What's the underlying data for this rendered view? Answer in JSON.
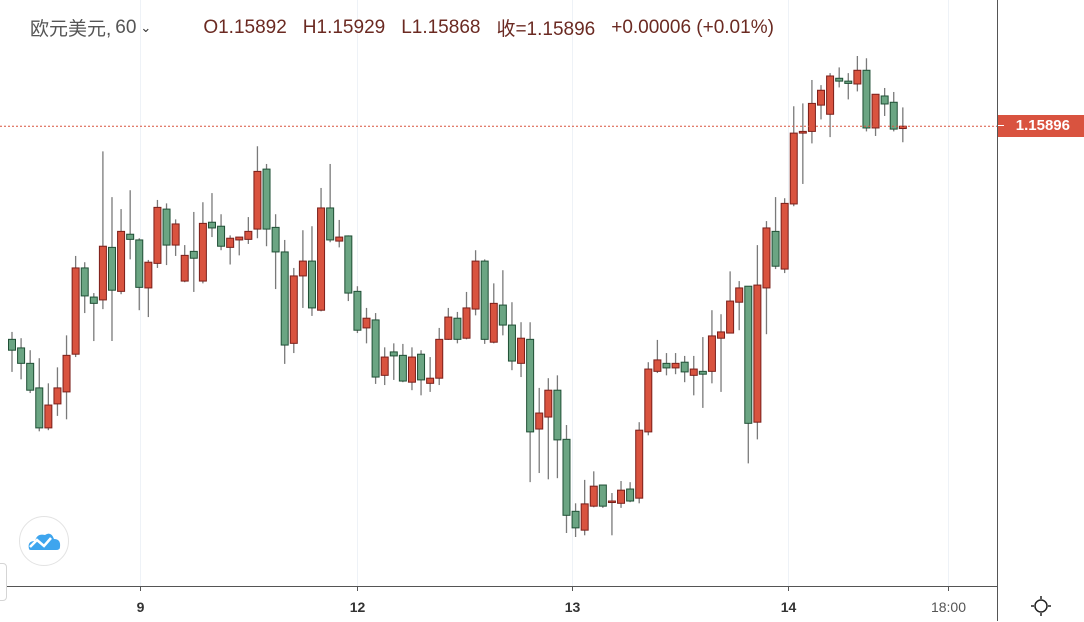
{
  "header": {
    "symbol": "欧元美元,",
    "interval": "60",
    "open": "O1.15892",
    "high": "H1.15929",
    "low": "L1.15868",
    "close": "收=1.15896",
    "change": "+0.00006 (+0.01%)"
  },
  "price_tag": "1.15896",
  "icons": {
    "logo": "tradingview-cloud-logo",
    "settings": "settings-sun-icon",
    "interval_dropdown": "chevron-down-icon"
  },
  "colors": {
    "up": "#d9533f",
    "up_border": "#7a1f1a",
    "down": "#6ba583",
    "down_border": "#1f4f35",
    "wick": "#7a7a7a",
    "last_price": "#d9533f",
    "grid": "#eef2f7"
  },
  "chart_data": {
    "type": "candlestick",
    "title": "欧元美元, 60",
    "xlabel": "",
    "ylabel": "",
    "ylim": [
      1.15093,
      1.16117
    ],
    "grid": true,
    "last_price": 1.15896,
    "x_ticks": [
      {
        "index": 14.1,
        "label": "9",
        "kind": "date"
      },
      {
        "index": 37.9,
        "label": "12",
        "kind": "date"
      },
      {
        "index": 61.6,
        "label": "13",
        "kind": "date"
      },
      {
        "index": 85.4,
        "label": "14",
        "kind": "date"
      },
      {
        "index": 103.0,
        "label": "18:00",
        "kind": "time"
      }
    ],
    "ohlc": [
      [
        1.15523,
        1.15536,
        1.15466,
        1.15504
      ],
      [
        1.15508,
        1.15525,
        1.15453,
        1.15481
      ],
      [
        1.15481,
        1.15504,
        1.15429,
        1.15434
      ],
      [
        1.15438,
        1.1549,
        1.15362,
        1.15368
      ],
      [
        1.15368,
        1.15446,
        1.15364,
        1.15408
      ],
      [
        1.1541,
        1.15474,
        1.15389,
        1.15438
      ],
      [
        1.15431,
        1.1553,
        1.15383,
        1.15495
      ],
      [
        1.15497,
        1.15669,
        1.15492,
        1.15648
      ],
      [
        1.15648,
        1.15658,
        1.15569,
        1.15599
      ],
      [
        1.15597,
        1.15604,
        1.1552,
        1.15586
      ],
      [
        1.15592,
        1.15852,
        1.15576,
        1.15686
      ],
      [
        1.15684,
        1.15772,
        1.1552,
        1.15609
      ],
      [
        1.15607,
        1.15751,
        1.15602,
        1.15712
      ],
      [
        1.15707,
        1.15784,
        1.15663,
        1.15698
      ],
      [
        1.15697,
        1.157,
        1.15574,
        1.15614
      ],
      [
        1.15613,
        1.15662,
        1.15562,
        1.15658
      ],
      [
        1.15656,
        1.15767,
        1.15648,
        1.15754
      ],
      [
        1.15751,
        1.15761,
        1.15653,
        1.15688
      ],
      [
        1.15688,
        1.15733,
        1.15669,
        1.15725
      ],
      [
        1.15625,
        1.15688,
        1.15623,
        1.1567
      ],
      [
        1.15677,
        1.15746,
        1.15606,
        1.15665
      ],
      [
        1.15625,
        1.15763,
        1.15621,
        1.15726
      ],
      [
        1.15728,
        1.15779,
        1.15702,
        1.15718
      ],
      [
        1.15721,
        1.15742,
        1.15679,
        1.15686
      ],
      [
        1.15684,
        1.15705,
        1.15654,
        1.157
      ],
      [
        1.15697,
        1.15702,
        1.1567,
        1.15702
      ],
      [
        1.15698,
        1.15737,
        1.1569,
        1.15712
      ],
      [
        1.15716,
        1.15861,
        1.157,
        1.15817
      ],
      [
        1.15821,
        1.1583,
        1.15686,
        1.15716
      ],
      [
        1.15719,
        1.15742,
        1.15611,
        1.15676
      ],
      [
        1.15676,
        1.15697,
        1.1548,
        1.15513
      ],
      [
        1.15516,
        1.15648,
        1.15499,
        1.15634
      ],
      [
        1.15634,
        1.15714,
        1.15578,
        1.1566
      ],
      [
        1.1566,
        1.15721,
        1.15564,
        1.15578
      ],
      [
        1.15574,
        1.15788,
        1.15572,
        1.15753
      ],
      [
        1.15753,
        1.1583,
        1.15693,
        1.15697
      ],
      [
        1.15695,
        1.15732,
        1.15684,
        1.15702
      ],
      [
        1.15704,
        1.15705,
        1.1559,
        1.15604
      ],
      [
        1.15607,
        1.15616,
        1.15534,
        1.15539
      ],
      [
        1.15543,
        1.15578,
        1.15516,
        1.1556
      ],
      [
        1.15557,
        1.15569,
        1.15445,
        1.15457
      ],
      [
        1.1546,
        1.15509,
        1.15443,
        1.15492
      ],
      [
        1.15501,
        1.15516,
        1.15452,
        1.15494
      ],
      [
        1.15495,
        1.15515,
        1.15448,
        1.1545
      ],
      [
        1.15448,
        1.15509,
        1.15434,
        1.15492
      ],
      [
        1.15497,
        1.15504,
        1.15425,
        1.15452
      ],
      [
        1.15446,
        1.15492,
        1.15431,
        1.15455
      ],
      [
        1.15455,
        1.15543,
        1.15443,
        1.15523
      ],
      [
        1.15523,
        1.15578,
        1.15522,
        1.15562
      ],
      [
        1.1556,
        1.15571,
        1.15516,
        1.15523
      ],
      [
        1.15525,
        1.15606,
        1.15523,
        1.15578
      ],
      [
        1.15576,
        1.15679,
        1.15565,
        1.1566
      ],
      [
        1.1566,
        1.15663,
        1.15515,
        1.15523
      ],
      [
        1.15518,
        1.15621,
        1.15516,
        1.15586
      ],
      [
        1.15583,
        1.15644,
        1.1553,
        1.15548
      ],
      [
        1.15548,
        1.15588,
        1.15469,
        1.15485
      ],
      [
        1.15481,
        1.15553,
        1.15457,
        1.15525
      ],
      [
        1.15523,
        1.15553,
        1.15273,
        1.15361
      ],
      [
        1.15366,
        1.15438,
        1.15289,
        1.15394
      ],
      [
        1.15387,
        1.15455,
        1.15278,
        1.15434
      ],
      [
        1.15434,
        1.1546,
        1.1528,
        1.15347
      ],
      [
        1.15348,
        1.15373,
        1.15184,
        1.15215
      ],
      [
        1.15222,
        1.15236,
        1.15177,
        1.15193
      ],
      [
        1.15189,
        1.15277,
        1.1518,
        1.15235
      ],
      [
        1.15231,
        1.15292,
        1.15229,
        1.15266
      ],
      [
        1.15268,
        1.15268,
        1.15228,
        1.15231
      ],
      [
        1.15238,
        1.15254,
        1.1518,
        1.1524
      ],
      [
        1.15236,
        1.15275,
        1.15228,
        1.15259
      ],
      [
        1.15261,
        1.15273,
        1.15238,
        1.1524
      ],
      [
        1.15245,
        1.15378,
        1.15236,
        1.15364
      ],
      [
        1.15361,
        1.15483,
        1.15355,
        1.15471
      ],
      [
        1.15467,
        1.15522,
        1.15464,
        1.15487
      ],
      [
        1.15481,
        1.15499,
        1.1546,
        1.15473
      ],
      [
        1.15473,
        1.15499,
        1.15462,
        1.15481
      ],
      [
        1.15483,
        1.15494,
        1.15448,
        1.15466
      ],
      [
        1.1546,
        1.15494,
        1.15425,
        1.15471
      ],
      [
        1.15467,
        1.15527,
        1.15403,
        1.15462
      ],
      [
        1.15467,
        1.15574,
        1.15446,
        1.15529
      ],
      [
        1.15525,
        1.15567,
        1.15431,
        1.15536
      ],
      [
        1.15534,
        1.15642,
        1.15534,
        1.1559
      ],
      [
        1.15588,
        1.15625,
        1.15539,
        1.15613
      ],
      [
        1.15616,
        1.15616,
        1.15306,
        1.15376
      ],
      [
        1.15378,
        1.15688,
        1.15348,
        1.15618
      ],
      [
        1.15613,
        1.1573,
        1.15532,
        1.15718
      ],
      [
        1.15712,
        1.15772,
        1.15646,
        1.15651
      ],
      [
        1.15646,
        1.1577,
        1.15639,
        1.15761
      ],
      [
        1.1576,
        1.15931,
        1.15756,
        1.15884
      ],
      [
        1.15884,
        1.15936,
        1.15795,
        1.15887
      ],
      [
        1.15887,
        1.15977,
        1.15866,
        1.15936
      ],
      [
        1.15933,
        1.15968,
        1.15908,
        1.15959
      ],
      [
        1.15917,
        1.15989,
        1.15877,
        1.15984
      ],
      [
        1.1598,
        1.15999,
        1.15964,
        1.15975
      ],
      [
        1.15975,
        1.15989,
        1.15943,
        1.15971
      ],
      [
        1.1597,
        1.16019,
        1.15957,
        1.15994
      ],
      [
        1.15994,
        1.16015,
        1.15887,
        1.15893
      ],
      [
        1.15893,
        1.15952,
        1.15879,
        1.15952
      ],
      [
        1.15949,
        1.15963,
        1.15914,
        1.15935
      ],
      [
        1.15938,
        1.15956,
        1.15887,
        1.15891
      ],
      [
        1.15892,
        1.15929,
        1.15868,
        1.15896
      ]
    ]
  }
}
